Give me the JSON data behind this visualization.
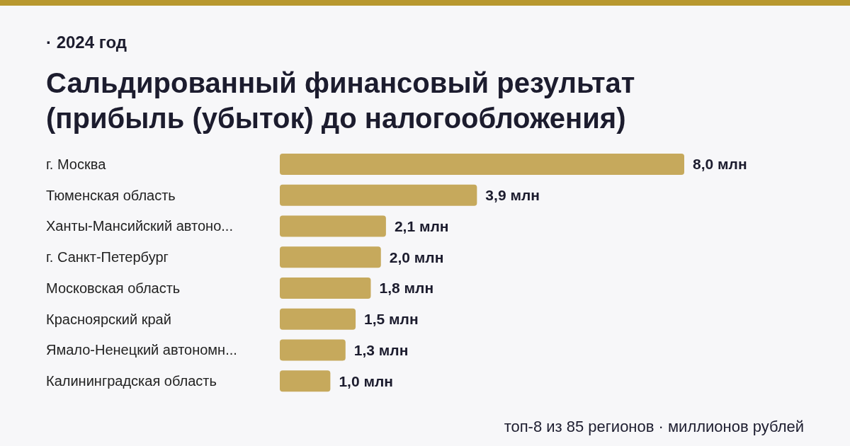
{
  "chart_data": {
    "type": "bar",
    "orientation": "horizontal",
    "subtitle": "· 2024 год",
    "title": "Сальдированный финансовый результат (прибыль (убыток) до налогообложения)",
    "categories": [
      "г. Москва",
      "Тюменская область",
      "Ханты-Мансийский автоно...",
      "г. Санкт-Петербург",
      "Московская область",
      "Красноярский край",
      "Ямало-Ненецкий автономн...",
      "Калининградская область"
    ],
    "values": [
      8.0,
      3.9,
      2.1,
      2.0,
      1.8,
      1.5,
      1.3,
      1.0
    ],
    "value_labels": [
      "8,0 млн",
      "3,9 млн",
      "2,1 млн",
      "2,0 млн",
      "1,8 млн",
      "1,5 млн",
      "1,3 млн",
      "1,0 млн"
    ],
    "color": "#c6a95c",
    "annotations": [
      "топ-8 из 85 регионов · миллионов рублей"
    ]
  }
}
